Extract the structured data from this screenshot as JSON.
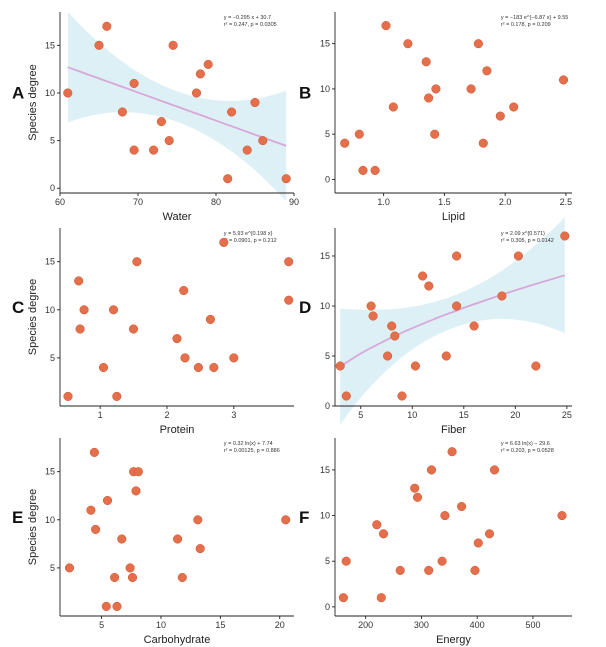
{
  "colors": {
    "point": "#e46f4a",
    "point_stroke": "#c9532f",
    "trend": "#d9a8d8",
    "band": "#dcf0f5"
  },
  "chart_data": [
    {
      "type": "scatter",
      "panel": "A",
      "xlabel": "Water",
      "ylabel": "Species degree",
      "xlim": [
        60,
        90
      ],
      "ylim": [
        -0.5,
        18.5
      ],
      "xticks": [
        60,
        70,
        80,
        90
      ],
      "yticks": [
        0,
        5,
        10,
        15
      ],
      "equation": [
        "y = −0.295 x + 30.7",
        "r² = 0.247,  p = 0.0305"
      ],
      "points": [
        [
          61,
          10
        ],
        [
          65,
          15
        ],
        [
          66,
          17
        ],
        [
          68,
          8
        ],
        [
          69.5,
          11
        ],
        [
          69.5,
          4
        ],
        [
          72,
          4
        ],
        [
          73,
          7
        ],
        [
          74,
          5
        ],
        [
          74.5,
          15
        ],
        [
          77.5,
          10
        ],
        [
          78,
          12
        ],
        [
          79,
          13
        ],
        [
          81.5,
          1
        ],
        [
          82,
          8
        ],
        [
          84,
          4
        ],
        [
          85,
          9
        ],
        [
          86,
          5
        ],
        [
          89,
          1
        ]
      ],
      "trend": {
        "kind": "linear",
        "a": -0.295,
        "b": 30.7,
        "band": true
      }
    },
    {
      "type": "scatter",
      "panel": "B",
      "xlabel": "Lipid",
      "ylabel": "",
      "xlim": [
        0.6,
        2.55
      ],
      "ylim": [
        -1.5,
        18.5
      ],
      "xticks": [
        1.0,
        1.5,
        2.0,
        2.5
      ],
      "yticks": [
        0,
        5,
        10,
        15
      ],
      "equation": [
        "y = −183 e^{−6.87 x} + 9.55",
        "r² = 0.178,  p = 0.209"
      ],
      "points": [
        [
          0.68,
          4
        ],
        [
          0.8,
          5
        ],
        [
          0.83,
          1
        ],
        [
          0.93,
          1
        ],
        [
          1.02,
          17
        ],
        [
          1.08,
          8
        ],
        [
          1.2,
          15
        ],
        [
          1.35,
          13
        ],
        [
          1.37,
          9
        ],
        [
          1.42,
          5
        ],
        [
          1.43,
          10
        ],
        [
          1.72,
          10
        ],
        [
          1.78,
          15
        ],
        [
          1.82,
          4
        ],
        [
          1.85,
          12
        ],
        [
          1.96,
          7
        ],
        [
          2.07,
          8
        ],
        [
          2.48,
          11
        ]
      ]
    },
    {
      "type": "scatter",
      "panel": "C",
      "xlabel": "Protein",
      "ylabel": "Species degree",
      "xlim": [
        0.4,
        3.9
      ],
      "ylim": [
        0,
        18.5
      ],
      "xticks": [
        1,
        2,
        3
      ],
      "yticks": [
        5,
        10,
        15
      ],
      "equation": [
        "y = 5.93 e^{0.198 x}",
        "r² = 0.0901,  p = 0.212"
      ],
      "points": [
        [
          0.52,
          1
        ],
        [
          0.68,
          13
        ],
        [
          0.7,
          8
        ],
        [
          0.76,
          10
        ],
        [
          1.05,
          4
        ],
        [
          1.2,
          10
        ],
        [
          1.25,
          1
        ],
        [
          1.5,
          8
        ],
        [
          1.55,
          15
        ],
        [
          2.15,
          7
        ],
        [
          2.25,
          12
        ],
        [
          2.27,
          5
        ],
        [
          2.47,
          4
        ],
        [
          2.65,
          9
        ],
        [
          2.7,
          4
        ],
        [
          2.85,
          17
        ],
        [
          3.0,
          5
        ],
        [
          3.82,
          15
        ],
        [
          3.82,
          11
        ]
      ]
    },
    {
      "type": "scatter",
      "panel": "D",
      "xlabel": "Fiber",
      "ylabel": "",
      "xlim": [
        2.5,
        25.5
      ],
      "ylim": [
        0,
        17.8
      ],
      "xticks": [
        5,
        10,
        15,
        20,
        25
      ],
      "yticks": [
        0,
        5,
        10,
        15
      ],
      "equation": [
        "y = 2.09 x^{0.571}",
        "r² = 0.305,  p = 0.0142"
      ],
      "points": [
        [
          3,
          4
        ],
        [
          3.6,
          1
        ],
        [
          6,
          10
        ],
        [
          6.2,
          9
        ],
        [
          7.6,
          5
        ],
        [
          8,
          8
        ],
        [
          8.3,
          7
        ],
        [
          9,
          1
        ],
        [
          10.3,
          4
        ],
        [
          11,
          13
        ],
        [
          11.6,
          12
        ],
        [
          13.3,
          5
        ],
        [
          14.3,
          15
        ],
        [
          14.3,
          10
        ],
        [
          16,
          8
        ],
        [
          18.7,
          11
        ],
        [
          20.3,
          15
        ],
        [
          22,
          4
        ],
        [
          24.8,
          17
        ]
      ],
      "trend": {
        "kind": "power",
        "a": 2.09,
        "b": 0.571,
        "band": true
      }
    },
    {
      "type": "scatter",
      "panel": "E",
      "xlabel": "Carbohydrate",
      "ylabel": "Species degree",
      "xlim": [
        1.5,
        21.2
      ],
      "ylim": [
        0,
        18.5
      ],
      "xticks": [
        5,
        10,
        15,
        20
      ],
      "yticks": [
        5,
        10,
        15
      ],
      "equation": [
        "y = 0.32 ln(x) + 7.74",
        "r² = 0.00125,  p = 0.886"
      ],
      "points": [
        [
          2.3,
          5
        ],
        [
          4.1,
          11
        ],
        [
          4.4,
          17
        ],
        [
          4.5,
          9
        ],
        [
          5.4,
          1
        ],
        [
          5.5,
          12
        ],
        [
          6.1,
          4
        ],
        [
          6.3,
          1
        ],
        [
          6.7,
          8
        ],
        [
          7.4,
          5
        ],
        [
          7.6,
          4
        ],
        [
          7.7,
          15
        ],
        [
          7.9,
          13
        ],
        [
          8.1,
          15
        ],
        [
          11.4,
          8
        ],
        [
          11.8,
          4
        ],
        [
          13.1,
          10
        ],
        [
          13.3,
          7
        ],
        [
          20.5,
          10
        ]
      ]
    },
    {
      "type": "scatter",
      "panel": "F",
      "xlabel": "Energy",
      "ylabel": "",
      "xlim": [
        145,
        570
      ],
      "ylim": [
        -1,
        18.5
      ],
      "xticks": [
        200,
        300,
        400,
        500
      ],
      "yticks": [
        0,
        5,
        10,
        15
      ],
      "equation": [
        "y = 6.63 ln(x) − 29.6",
        "r² = 0.203,  p = 0.0528"
      ],
      "points": [
        [
          160,
          1
        ],
        [
          165,
          5
        ],
        [
          220,
          9
        ],
        [
          228,
          1
        ],
        [
          232,
          8
        ],
        [
          262,
          4
        ],
        [
          288,
          13
        ],
        [
          293,
          12
        ],
        [
          313,
          4
        ],
        [
          318,
          15
        ],
        [
          337,
          5
        ],
        [
          342,
          10
        ],
        [
          355,
          17
        ],
        [
          372,
          11
        ],
        [
          396,
          4
        ],
        [
          402,
          7
        ],
        [
          422,
          8
        ],
        [
          431,
          15
        ],
        [
          552,
          10
        ]
      ]
    }
  ]
}
